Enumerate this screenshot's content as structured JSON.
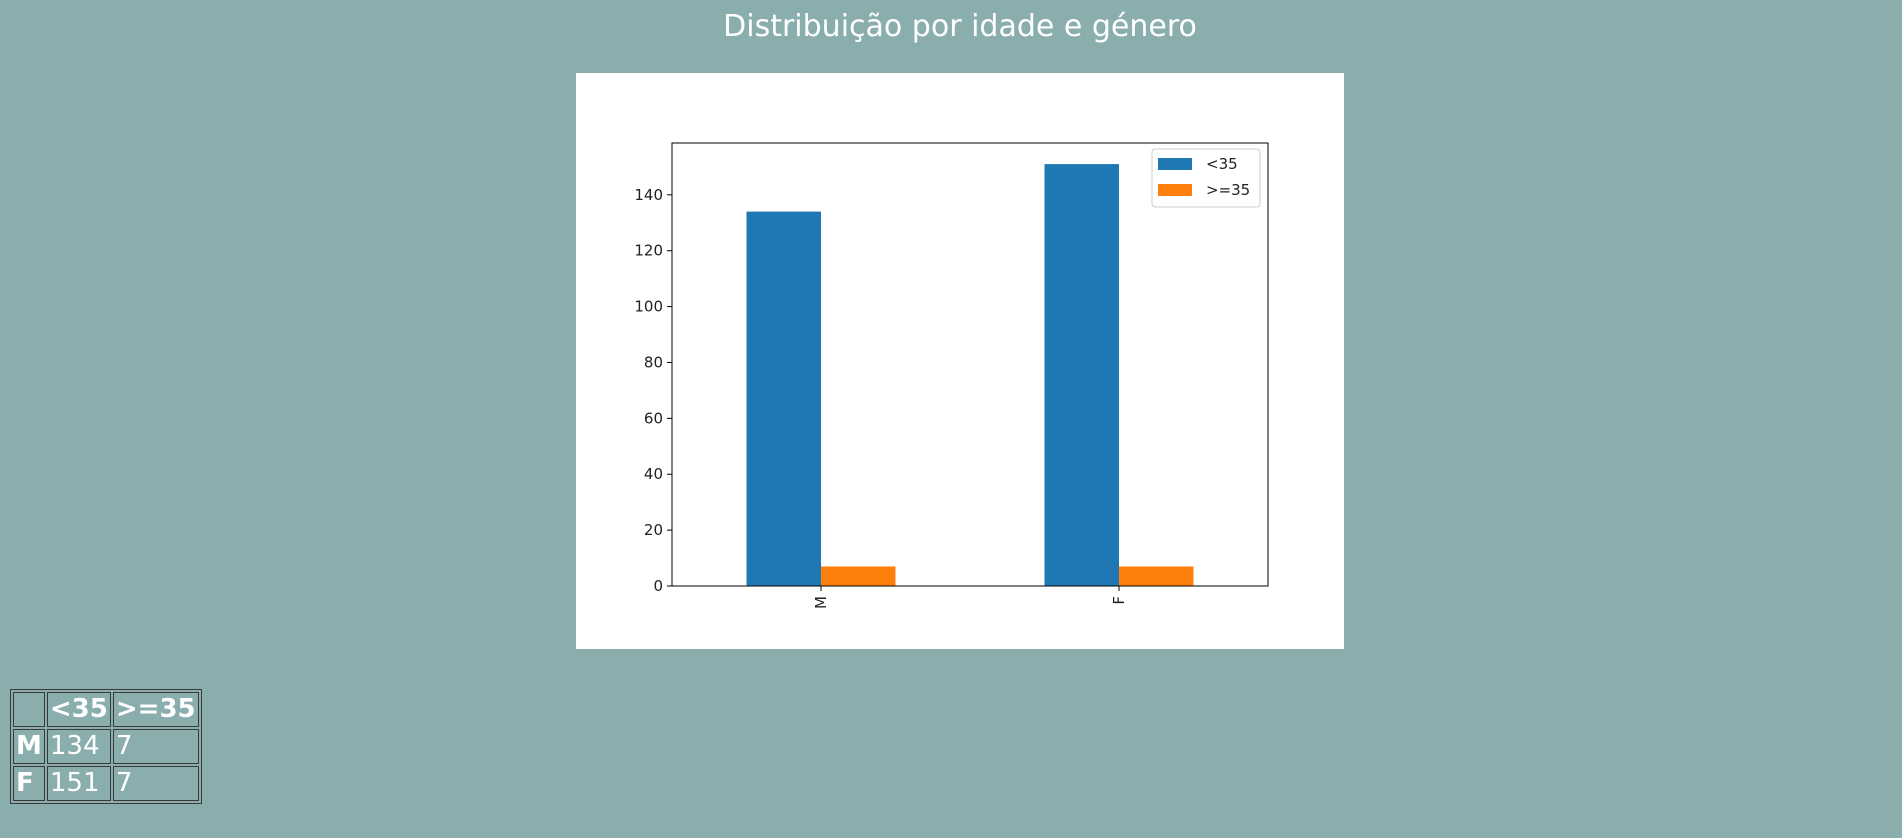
{
  "page": {
    "title": "Distribuição por idade e género"
  },
  "table": {
    "columns": [
      "",
      "<35",
      ">=35"
    ],
    "rows": [
      {
        "label": "M",
        "values": [
          "134",
          "7"
        ]
      },
      {
        "label": "F",
        "values": [
          "151",
          "7"
        ]
      }
    ]
  },
  "chart_data": {
    "type": "bar",
    "categories": [
      "M",
      "F"
    ],
    "series": [
      {
        "name": "<35",
        "values": [
          134,
          151
        ],
        "color": "#1f77b4"
      },
      {
        "name": ">=35",
        "values": [
          7,
          7
        ],
        "color": "#ff7f0e"
      }
    ],
    "yticks": [
      0,
      20,
      40,
      60,
      80,
      100,
      120,
      140
    ],
    "ylim": [
      0,
      158.55
    ],
    "legend": "top-right",
    "grid": false
  }
}
